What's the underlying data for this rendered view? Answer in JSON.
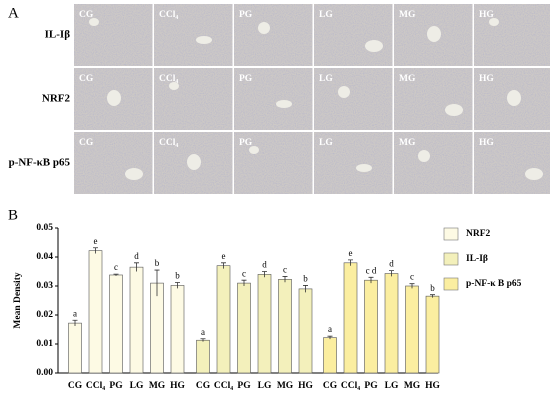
{
  "panel_a": {
    "label": "A",
    "rows": [
      "IL-Iβ",
      "NRF2",
      "p-NF-κB p65"
    ],
    "columns": [
      "CG",
      "CCl₄",
      "PG",
      "LG",
      "MG",
      "HG"
    ]
  },
  "chart_data": {
    "type": "bar",
    "label": "B",
    "y_label": "Mean Density",
    "categories": [
      "CG",
      "CCl₄",
      "PG",
      "LG",
      "MG",
      "HG"
    ],
    "series": [
      {
        "name": "NRF2",
        "color": "#fdfae4",
        "values": [
          0.0172,
          0.0422,
          0.0338,
          0.0365,
          0.031,
          0.0302
        ],
        "errors": [
          0.001,
          0.001,
          0.0003,
          0.0015,
          0.0045,
          0.001
        ],
        "letters": [
          "a",
          "e",
          "c",
          "d",
          "b",
          "b"
        ]
      },
      {
        "name": "IL-Iβ",
        "color": "#f3f0bb",
        "values": [
          0.0113,
          0.037,
          0.031,
          0.034,
          0.0323,
          0.029
        ],
        "errors": [
          0.0005,
          0.001,
          0.001,
          0.001,
          0.001,
          0.0012
        ],
        "letters": [
          "a",
          "e",
          "c",
          "d",
          "c",
          "b"
        ]
      },
      {
        "name": "p-NF-κ B p65",
        "color": "#fbeea0",
        "values": [
          0.0122,
          0.038,
          0.032,
          0.0343,
          0.03,
          0.0265
        ],
        "errors": [
          0.0005,
          0.001,
          0.001,
          0.001,
          0.0008,
          0.0005
        ],
        "letters": [
          "a",
          "e",
          "c d",
          "d",
          "c",
          "b"
        ]
      }
    ],
    "ylim": [
      0,
      0.05
    ],
    "yticks": [
      {
        "value": 0,
        "label": "0.00"
      },
      0.01,
      0.02,
      0.03,
      0.04,
      0.05
    ]
  }
}
